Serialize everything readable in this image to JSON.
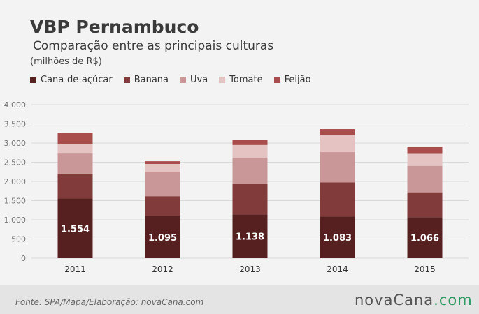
{
  "header": {
    "title": "VBP Pernambuco",
    "subtitle": "Comparação entre as principais culturas",
    "unit": "(milhões de R$)"
  },
  "footer": {
    "source": "Fonte: SPA/Mapa/Elaboração: novaCana.com",
    "brand_main": "novaCana",
    "brand_dom": ".com"
  },
  "chart_data": {
    "type": "bar",
    "stacked": true,
    "categories": [
      "2011",
      "2012",
      "2013",
      "2014",
      "2015"
    ],
    "ylim": [
      0,
      4000
    ],
    "yticks": [
      0,
      500,
      1000,
      1500,
      2000,
      2500,
      3000,
      3500,
      4000
    ],
    "ytick_labels": [
      "0",
      "500",
      "1.000",
      "1.500",
      "2.000",
      "2.500",
      "3.000",
      "3.500",
      "4.000"
    ],
    "grid": true,
    "legend_position": "top-left",
    "series": [
      {
        "name": "Cana-de-açúcar",
        "color": "#55201f",
        "values": [
          1554,
          1095,
          1138,
          1083,
          1066
        ],
        "value_labels": [
          "1.554",
          "1.095",
          "1.138",
          "1.083",
          "1.066"
        ]
      },
      {
        "name": "Banana",
        "color": "#813b3b",
        "values": [
          650,
          520,
          790,
          890,
          650
        ]
      },
      {
        "name": "Uva",
        "color": "#c99797",
        "values": [
          540,
          640,
          690,
          790,
          690
        ]
      },
      {
        "name": "Tomate",
        "color": "#e6c3c3",
        "values": [
          220,
          200,
          330,
          450,
          330
        ]
      },
      {
        "name": "Feijão",
        "color": "#a94c4c",
        "values": [
          300,
          70,
          140,
          150,
          170
        ]
      }
    ]
  }
}
